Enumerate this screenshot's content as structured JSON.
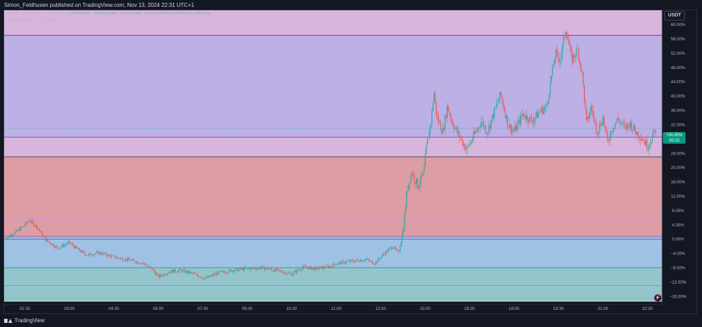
{
  "publisher_line": "Simon_Feldhusen published on TradingView.com, Nov 13, 2024 22:31 UTC+1",
  "legend": {
    "symbol_line": "PEPE / TetherUS, 1, BINANCE",
    "o_label": "O",
    "o_value": "0.00001848",
    "h_label": "H",
    "h_value": "0.00001849",
    "l_label": "L",
    "l_value": "0.00001838",
    "c_label": "C",
    "c_value": "0.00001849",
    "change": "+0.00000001 (+0.05%)",
    "indicator": "Volume Profile Fixed Range"
  },
  "price_axis": {
    "unit": "USDT"
  },
  "last_price": {
    "change": "+30.95%",
    "countdown": "00:23"
  },
  "footer": {
    "brand": "TradingView"
  },
  "colors": {
    "background": "#131722",
    "up": "#26a69a",
    "down": "#ef5350",
    "zone_top": "#e1bee7",
    "zone_upper": "#c5b8f0",
    "zone_mid": "#e8a4ad",
    "zone_low": "#a7cbef",
    "zone_bottom": "#9ccfd6",
    "level_line": "#9c27b0",
    "price_tag": "#089981"
  },
  "chart_data": {
    "type": "candlestick",
    "title": "PEPE / TetherUS, 1, BINANCE",
    "xlabel": "",
    "ylabel": "",
    "y_scale": "percent",
    "ylim": [
      -17.5,
      64
    ],
    "grid": false,
    "y_ticks": [
      "60.00%",
      "56.00%",
      "52.00%",
      "48.00%",
      "44.00%",
      "40.00%",
      "36.00%",
      "32.00%",
      "28.00%",
      "24.00%",
      "20.00%",
      "16.00%",
      "12.00%",
      "8.00%",
      "4.00%",
      "0.00%",
      "−4.00%",
      "−8.00%",
      "−12.00%",
      "−16.00%"
    ],
    "y_tick_values": [
      60,
      56,
      52,
      48,
      44,
      40,
      36,
      32,
      28,
      24,
      20,
      16,
      12,
      8,
      4,
      0,
      -4,
      -8,
      -12,
      -16
    ],
    "x_ticks": [
      "01:30",
      "03:00",
      "04:30",
      "06:00",
      "07:30",
      "09:00",
      "10:30",
      "12:00",
      "13:30",
      "15:00",
      "16:30",
      "18:00",
      "19:30",
      "21:00",
      "22:30"
    ],
    "x_tick_hours": [
      1.5,
      3,
      4.5,
      6,
      7.5,
      9,
      10.5,
      12,
      13.5,
      15,
      16.5,
      18,
      19.5,
      21,
      22.5
    ],
    "x_range_hours": [
      0.8,
      23.0
    ],
    "price_path": [
      {
        "t": 0.8,
        "v": 0.0
      },
      {
        "t": 1.2,
        "v": 2.0
      },
      {
        "t": 1.5,
        "v": 4.0
      },
      {
        "t": 1.65,
        "v": 5.2
      },
      {
        "t": 1.9,
        "v": 3.5
      },
      {
        "t": 2.2,
        "v": -0.2
      },
      {
        "t": 2.6,
        "v": -2.5
      },
      {
        "t": 3.0,
        "v": -1.0
      },
      {
        "t": 3.3,
        "v": -3.0
      },
      {
        "t": 3.6,
        "v": -4.5
      },
      {
        "t": 4.0,
        "v": -3.8
      },
      {
        "t": 4.5,
        "v": -5.0
      },
      {
        "t": 5.0,
        "v": -5.8
      },
      {
        "t": 5.5,
        "v": -6.8
      },
      {
        "t": 5.8,
        "v": -8.5
      },
      {
        "t": 6.0,
        "v": -10.5
      },
      {
        "t": 6.4,
        "v": -9.0
      },
      {
        "t": 6.8,
        "v": -8.8
      },
      {
        "t": 7.2,
        "v": -9.8
      },
      {
        "t": 7.6,
        "v": -11.0
      },
      {
        "t": 8.0,
        "v": -9.5
      },
      {
        "t": 8.5,
        "v": -8.7
      },
      {
        "t": 9.0,
        "v": -8.3
      },
      {
        "t": 9.5,
        "v": -8.0
      },
      {
        "t": 10.0,
        "v": -8.8
      },
      {
        "t": 10.5,
        "v": -9.8
      },
      {
        "t": 10.9,
        "v": -7.8
      },
      {
        "t": 11.3,
        "v": -8.3
      },
      {
        "t": 11.8,
        "v": -7.6
      },
      {
        "t": 12.0,
        "v": -6.8
      },
      {
        "t": 12.5,
        "v": -6.2
      },
      {
        "t": 13.0,
        "v": -5.7
      },
      {
        "t": 13.3,
        "v": -6.8
      },
      {
        "t": 13.6,
        "v": -4.2
      },
      {
        "t": 13.9,
        "v": -2.0
      },
      {
        "t": 14.1,
        "v": -4.0
      },
      {
        "t": 14.25,
        "v": 2.0
      },
      {
        "t": 14.4,
        "v": 14.0
      },
      {
        "t": 14.55,
        "v": 19.0
      },
      {
        "t": 14.75,
        "v": 15.0
      },
      {
        "t": 14.95,
        "v": 18.0
      },
      {
        "t": 15.05,
        "v": 26.0
      },
      {
        "t": 15.2,
        "v": 33.0
      },
      {
        "t": 15.3,
        "v": 41.0
      },
      {
        "t": 15.4,
        "v": 34.0
      },
      {
        "t": 15.6,
        "v": 30.0
      },
      {
        "t": 15.75,
        "v": 37.0
      },
      {
        "t": 15.95,
        "v": 32.0
      },
      {
        "t": 16.2,
        "v": 28.0
      },
      {
        "t": 16.4,
        "v": 25.0
      },
      {
        "t": 16.65,
        "v": 29.0
      },
      {
        "t": 16.9,
        "v": 33.0
      },
      {
        "t": 17.1,
        "v": 30.0
      },
      {
        "t": 17.35,
        "v": 36.0
      },
      {
        "t": 17.55,
        "v": 40.5
      },
      {
        "t": 17.8,
        "v": 32.0
      },
      {
        "t": 18.0,
        "v": 30.0
      },
      {
        "t": 18.3,
        "v": 35.0
      },
      {
        "t": 18.6,
        "v": 33.0
      },
      {
        "t": 18.9,
        "v": 36.0
      },
      {
        "t": 19.1,
        "v": 37.0
      },
      {
        "t": 19.25,
        "v": 45.0
      },
      {
        "t": 19.4,
        "v": 52.0
      },
      {
        "t": 19.55,
        "v": 50.0
      },
      {
        "t": 19.75,
        "v": 59.0
      },
      {
        "t": 19.95,
        "v": 50.0
      },
      {
        "t": 20.15,
        "v": 53.0
      },
      {
        "t": 20.3,
        "v": 46.0
      },
      {
        "t": 20.45,
        "v": 32.0
      },
      {
        "t": 20.6,
        "v": 37.0
      },
      {
        "t": 20.8,
        "v": 30.0
      },
      {
        "t": 21.0,
        "v": 34.0
      },
      {
        "t": 21.15,
        "v": 27.0
      },
      {
        "t": 21.3,
        "v": 31.0
      },
      {
        "t": 21.5,
        "v": 33.5
      },
      {
        "t": 21.75,
        "v": 31.0
      },
      {
        "t": 21.9,
        "v": 32.5
      },
      {
        "t": 22.1,
        "v": 30.0
      },
      {
        "t": 22.3,
        "v": 28.5
      },
      {
        "t": 22.5,
        "v": 26.0
      },
      {
        "t": 22.65,
        "v": 28.5
      },
      {
        "t": 22.8,
        "v": 30.95
      }
    ],
    "zones": [
      {
        "from": 57.0,
        "to": 64.0,
        "color": "#e1bee7"
      },
      {
        "from": 28.5,
        "to": 57.0,
        "color": "#c5b8f0"
      },
      {
        "from": 23.0,
        "to": 28.5,
        "color": "#e1bee7"
      },
      {
        "from": 0.5,
        "to": 23.0,
        "color": "#e8a4ad"
      },
      {
        "from": -8.0,
        "to": 0.5,
        "color": "#a7cbef"
      },
      {
        "from": -17.5,
        "to": -8.0,
        "color": "#9ccfd6"
      }
    ],
    "levels": [
      {
        "value": 57.0,
        "color": "#9c27b0"
      },
      {
        "value": 28.5,
        "color": "#ab47bc"
      },
      {
        "value": 23.0,
        "color": "#434651"
      },
      {
        "value": 5.8,
        "color": "#ce93d8"
      },
      {
        "value": 0.8,
        "color": "#9575cd"
      },
      {
        "value": 0.0,
        "color": "#5c6bc0"
      },
      {
        "value": -8.0,
        "color": "#26a69a"
      },
      {
        "value": -13.0,
        "color": "#4db6ac"
      },
      {
        "value": -16.5,
        "color": "#81c784"
      }
    ],
    "last_value": 30.95
  }
}
